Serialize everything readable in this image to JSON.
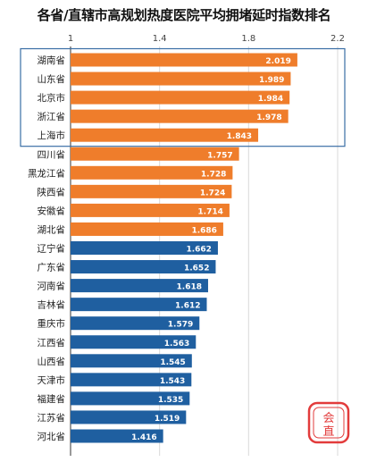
{
  "chart_data": {
    "type": "bar",
    "orientation": "horizontal",
    "title": "各省/直辖市高规划热度医院平均拥堵延时指数排名",
    "xlim": [
      1,
      2.2
    ],
    "xticks": [
      "1",
      "1.4",
      "1.8",
      "2.2"
    ],
    "xtick_values": [
      1,
      1.4,
      1.8,
      2.2
    ],
    "categories": [
      "湖南省",
      "山东省",
      "北京市",
      "浙江省",
      "上海市",
      "四川省",
      "黑龙江省",
      "陕西省",
      "安徽省",
      "湖北省",
      "辽宁省",
      "广东省",
      "河南省",
      "吉林省",
      "重庆市",
      "江西省",
      "山西省",
      "天津市",
      "福建省",
      "江苏省",
      "河北省"
    ],
    "values": [
      2.019,
      1.989,
      1.984,
      1.978,
      1.843,
      1.757,
      1.728,
      1.724,
      1.714,
      1.686,
      1.662,
      1.652,
      1.618,
      1.612,
      1.579,
      1.563,
      1.545,
      1.543,
      1.535,
      1.519,
      1.416
    ],
    "value_labels": [
      "2.019",
      "1.989",
      "1.984",
      "1.978",
      "1.843",
      "1.757",
      "1.728",
      "1.724",
      "1.714",
      "1.686",
      "1.662",
      "1.652",
      "1.618",
      "1.612",
      "1.579",
      "1.563",
      "1.545",
      "1.543",
      "1.535",
      "1.519",
      "1.416"
    ],
    "bar_groups": [
      "orange",
      "orange",
      "orange",
      "orange",
      "orange",
      "orange",
      "orange",
      "orange",
      "orange",
      "orange",
      "blue",
      "blue",
      "blue",
      "blue",
      "blue",
      "blue",
      "blue",
      "blue",
      "blue",
      "blue",
      "blue"
    ],
    "highlighted_top": 5,
    "colors": {
      "orange": "#ef7d2b",
      "blue": "#1f5fa0",
      "highlight_box": "#3a6ea5",
      "grid": "#d9d9d9",
      "axis": "#333333"
    },
    "grid": true
  },
  "stamp_text": "会直"
}
